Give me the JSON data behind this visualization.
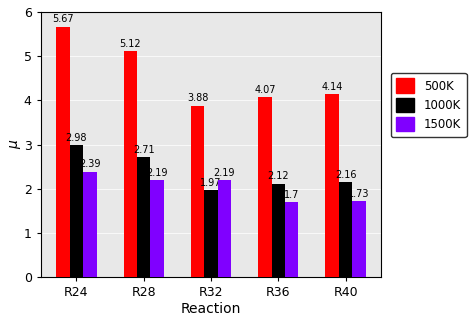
{
  "categories": [
    "R24",
    "R28",
    "R32",
    "R36",
    "R40"
  ],
  "series": {
    "500K": [
      5.67,
      5.12,
      3.88,
      4.07,
      4.14
    ],
    "1000K": [
      2.98,
      2.71,
      1.97,
      2.12,
      2.16
    ],
    "1500K": [
      2.39,
      2.19,
      2.19,
      1.7,
      1.73
    ]
  },
  "colors": {
    "500K": "#ff0000",
    "1000K": "#000000",
    "1500K": "#8000ff"
  },
  "ylabel": "μ",
  "xlabel": "Reaction",
  "ylim": [
    0,
    6
  ],
  "yticks": [
    0,
    1,
    2,
    3,
    4,
    5,
    6
  ],
  "bar_width": 0.2,
  "legend_labels": [
    "500K",
    "1000K",
    "1500K"
  ],
  "annotation_fontsize": 7,
  "label_fontsize": 10,
  "tick_fontsize": 9,
  "bg_color": "#e8e8e8",
  "fig_color": "#ffffff"
}
